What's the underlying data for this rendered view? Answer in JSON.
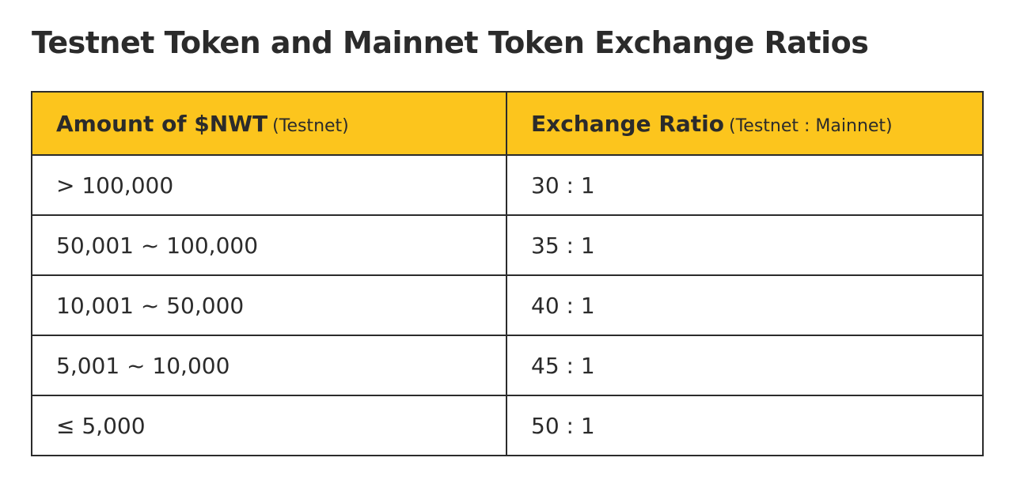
{
  "title": "Testnet Token and Mainnet Token Exchange Ratios",
  "table": {
    "headers": [
      {
        "main": "Amount of $NWT",
        "sub": "(Testnet)"
      },
      {
        "main": "Exchange Ratio",
        "sub": "(Testnet : Mainnet)"
      }
    ],
    "rows": [
      {
        "amount": "> 100,000",
        "ratio": "30 : 1"
      },
      {
        "amount": "50,001 ~ 100,000",
        "ratio": "35 : 1"
      },
      {
        "amount": "10,001 ~ 50,000",
        "ratio": "40 : 1"
      },
      {
        "amount": "5,001 ~ 10,000",
        "ratio": "45 : 1"
      },
      {
        "amount": "≤ 5,000",
        "ratio": "50 : 1"
      }
    ]
  },
  "colors": {
    "header_bg": "#fcc51d",
    "text": "#2b2b2b",
    "border": "#2b2b2b"
  }
}
